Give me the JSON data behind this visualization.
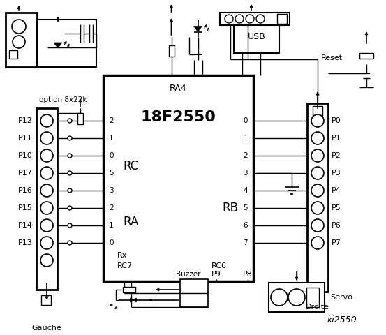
{
  "bg_color": "#ffffff",
  "title": "ki2550",
  "chip_label": "18F2550",
  "chip_ra4": "RA4",
  "chip_rc": "RC",
  "chip_ra": "RA",
  "chip_rb": "RB",
  "chip_rx": "Rx",
  "chip_rc7": "RC7",
  "chip_rc6": "RC6",
  "left_labels": [
    "P12",
    "P11",
    "P10",
    "P17",
    "P16",
    "P15",
    "P14",
    "P13"
  ],
  "right_labels": [
    "P0",
    "P1",
    "P2",
    "P3",
    "P4",
    "P5",
    "P6",
    "P7"
  ],
  "left_rc_pins": [
    "2",
    "1",
    "0"
  ],
  "left_ra_pins": [
    "5",
    "3",
    "2",
    "1",
    "0"
  ],
  "right_rb_pins": [
    "0",
    "1",
    "2",
    "3",
    "4",
    "5",
    "6",
    "7"
  ],
  "option_text": "option 8x22k",
  "gauche_text": "Gauche",
  "droite_text": "Droite",
  "servo_text": "Servo",
  "buzzer_text": "Buzzer",
  "usb_text": "USB",
  "reset_text": "Reset",
  "p8_text": "P8",
  "p9_text": "P9"
}
